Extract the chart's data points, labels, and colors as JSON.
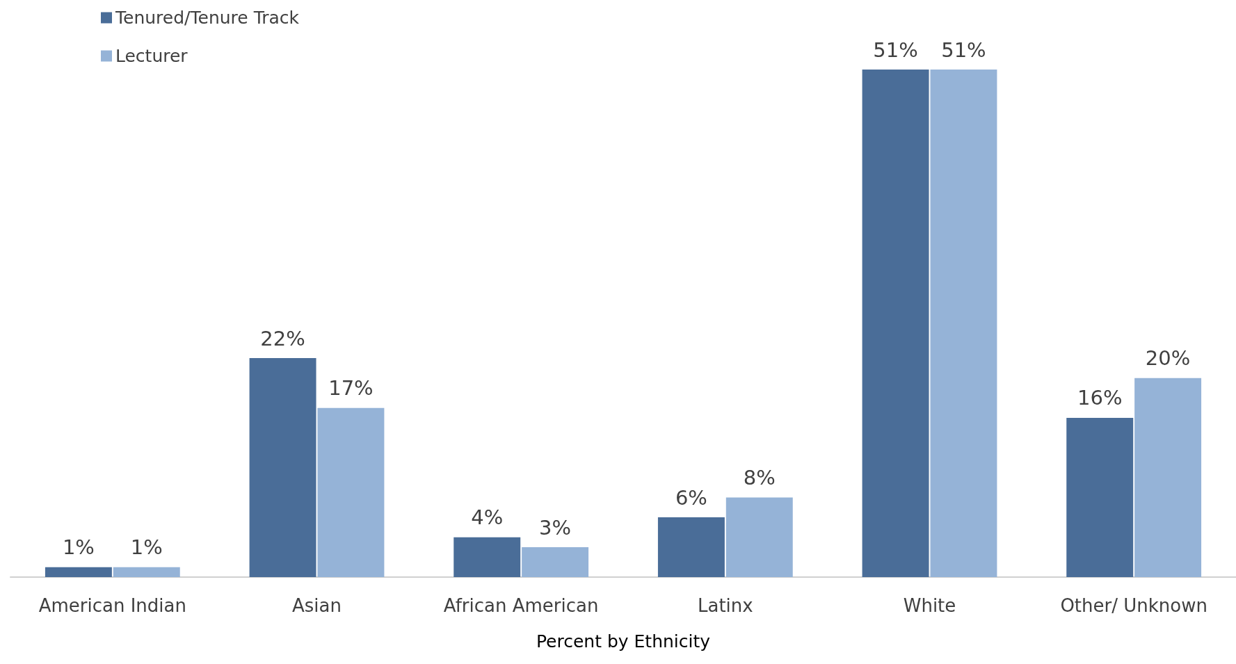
{
  "chart_data": {
    "type": "bar",
    "xlabel": "Percent by Ethnicity",
    "categories": [
      "American Indian",
      "Asian",
      "African American",
      "Latinx",
      "White",
      "Other/ Unknown"
    ],
    "series": [
      {
        "name": "Tenured/Tenure Track",
        "color": "#4a6d98",
        "values": [
          1,
          22,
          4,
          6,
          51,
          16
        ],
        "value_labels": [
          "1%",
          "22%",
          "4%",
          "6%",
          "51%",
          "16%"
        ]
      },
      {
        "name": "Lecturer",
        "color": "#95b3d7",
        "values": [
          1,
          17,
          3,
          8,
          51,
          20
        ],
        "value_labels": [
          "1%",
          "17%",
          "3%",
          "8%",
          "51%",
          "20%"
        ]
      }
    ],
    "legend": "top left",
    "grid": false
  }
}
